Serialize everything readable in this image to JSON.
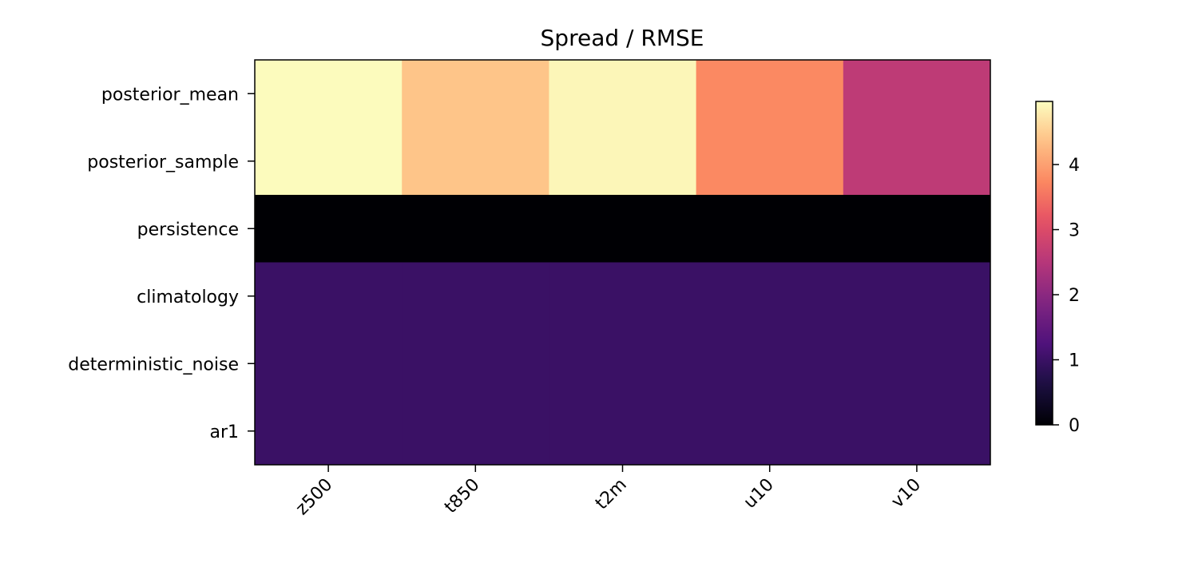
{
  "chart_data": {
    "type": "heatmap",
    "title": "Spread / RMSE",
    "xlabel": "",
    "ylabel": "",
    "x": [
      "z500",
      "t850",
      "t2m",
      "u10",
      "v10"
    ],
    "y": [
      "posterior_mean",
      "posterior_sample",
      "persistence",
      "climatology",
      "deterministic_noise",
      "ar1"
    ],
    "values": [
      [
        4.95,
        4.4,
        4.9,
        3.75,
        2.6
      ],
      [
        4.95,
        4.4,
        4.9,
        3.75,
        2.6
      ],
      [
        0.0,
        0.0,
        0.0,
        0.0,
        0.0
      ],
      [
        1.0,
        1.0,
        1.0,
        1.0,
        1.0
      ],
      [
        1.0,
        1.0,
        1.0,
        1.0,
        1.0
      ],
      [
        1.0,
        1.0,
        1.0,
        1.0,
        1.0
      ]
    ],
    "colormap": "magma",
    "vmin": 0,
    "vmax": 4.97,
    "colorbar_ticks": [
      "0",
      "1",
      "2",
      "3",
      "4"
    ],
    "colorbar_position": "right"
  }
}
